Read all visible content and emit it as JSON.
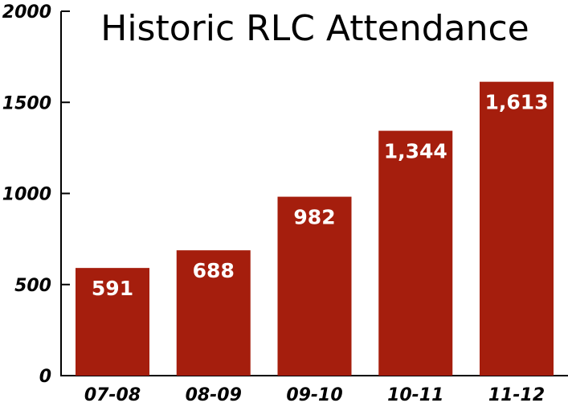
{
  "chart_data": {
    "type": "bar",
    "title": "Historic RLC Attendance",
    "xlabel": "",
    "ylabel": "",
    "categories": [
      "07-08",
      "08-09",
      "09-10",
      "10-11",
      "11-12"
    ],
    "values": [
      591,
      688,
      982,
      1344,
      1613
    ],
    "data_labels": [
      "591",
      "688",
      "982",
      "1,344",
      "1,613"
    ],
    "ylim": [
      0,
      2000
    ],
    "yticks": [
      0,
      500,
      1000,
      1500,
      2000
    ],
    "ytick_labels": [
      "0",
      "500",
      "1000",
      "1500",
      "2000"
    ],
    "grid": false,
    "legend": "none",
    "bar_color": "#a51e0d"
  }
}
